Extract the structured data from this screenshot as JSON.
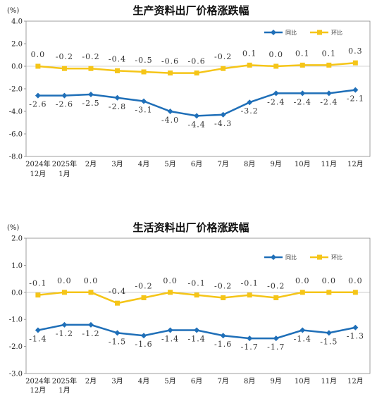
{
  "colors": {
    "yoy": "#1f6fb8",
    "mom": "#f5c518"
  },
  "chart_data": [
    {
      "type": "line",
      "title": "生产资料出厂价格涨跌幅",
      "unit_label": "(%)",
      "ylim": [
        -8.0,
        4.0
      ],
      "yticks": [
        "4.0",
        "2.0",
        "0.0",
        "-2.0",
        "-4.0",
        "-6.0",
        "-8.0"
      ],
      "ytick_values": [
        4,
        2,
        0,
        -2,
        -4,
        -6,
        -8
      ],
      "categories": [
        [
          "2024年",
          "12月"
        ],
        [
          "2025年",
          "1月"
        ],
        [
          "2月"
        ],
        [
          "3月"
        ],
        [
          "4月"
        ],
        [
          "5月"
        ],
        [
          "6月"
        ],
        [
          "7月"
        ],
        [
          "8月"
        ],
        [
          "9月"
        ],
        [
          "10月"
        ],
        [
          "11月"
        ],
        [
          "12月"
        ]
      ],
      "legend_placement": "top-right",
      "grid": false,
      "series": [
        {
          "name": "同比",
          "color": "#1f6fb8",
          "marker": "diamond",
          "values": [
            -2.6,
            -2.6,
            -2.5,
            -2.8,
            -3.1,
            -4.0,
            -4.4,
            -4.3,
            -3.2,
            -2.4,
            -2.4,
            -2.4,
            -2.1
          ],
          "labels": [
            "-2.6",
            "-2.6",
            "-2.5",
            "-2.8",
            "-3.1",
            "-4.0",
            "-4.4",
            "-4.3",
            "-3.2",
            "-2.4",
            "-2.4",
            "-2.4",
            "-2.1"
          ]
        },
        {
          "name": "环比",
          "color": "#f5c518",
          "marker": "square",
          "values": [
            0.0,
            -0.2,
            -0.2,
            -0.4,
            -0.5,
            -0.6,
            -0.6,
            -0.2,
            0.1,
            0.0,
            0.1,
            0.1,
            0.3
          ],
          "labels": [
            "0.0",
            "-0.2",
            "-0.2",
            "-0.4",
            "-0.5",
            "-0.6",
            "-0.6",
            "-0.2",
            "0.1",
            "0.0",
            "0.1",
            "0.1",
            "0.3"
          ]
        }
      ]
    },
    {
      "type": "line",
      "title": "生活资料出厂价格涨跌幅",
      "unit_label": "(%)",
      "ylim": [
        -3.0,
        2.0
      ],
      "yticks": [
        "2.0",
        "1.0",
        "0.0",
        "-1.0",
        "-2.0",
        "-3.0"
      ],
      "ytick_values": [
        2,
        1,
        0,
        -1,
        -2,
        -3
      ],
      "categories": [
        [
          "2024年",
          "12月"
        ],
        [
          "2025年",
          "1月"
        ],
        [
          "2月"
        ],
        [
          "3月"
        ],
        [
          "4月"
        ],
        [
          "5月"
        ],
        [
          "6月"
        ],
        [
          "7月"
        ],
        [
          "8月"
        ],
        [
          "9月"
        ],
        [
          "10月"
        ],
        [
          "11月"
        ],
        [
          "12月"
        ]
      ],
      "legend_placement": "top-right",
      "grid": false,
      "series": [
        {
          "name": "同比",
          "color": "#1f6fb8",
          "marker": "diamond",
          "values": [
            -1.4,
            -1.2,
            -1.2,
            -1.5,
            -1.6,
            -1.4,
            -1.4,
            -1.6,
            -1.7,
            -1.7,
            -1.4,
            -1.5,
            -1.3
          ],
          "labels": [
            "-1.4",
            "-1.2",
            "-1.2",
            "-1.5",
            "-1.6",
            "-1.4",
            "-1.4",
            "-1.6",
            "-1.7",
            "-1.7",
            "-1.4",
            "-1.5",
            "-1.3"
          ]
        },
        {
          "name": "环比",
          "color": "#f5c518",
          "marker": "square",
          "values": [
            -0.1,
            0.0,
            0.0,
            -0.4,
            -0.2,
            0.0,
            -0.1,
            -0.2,
            -0.1,
            -0.2,
            0.0,
            0.0,
            0.0
          ],
          "labels": [
            "-0.1",
            "0.0",
            "0.0",
            "-0.4",
            "-0.2",
            "0.0",
            "-0.1",
            "-0.2",
            "-0.1",
            "-0.2",
            "0.0",
            "0.0",
            "0.0"
          ]
        }
      ]
    }
  ]
}
